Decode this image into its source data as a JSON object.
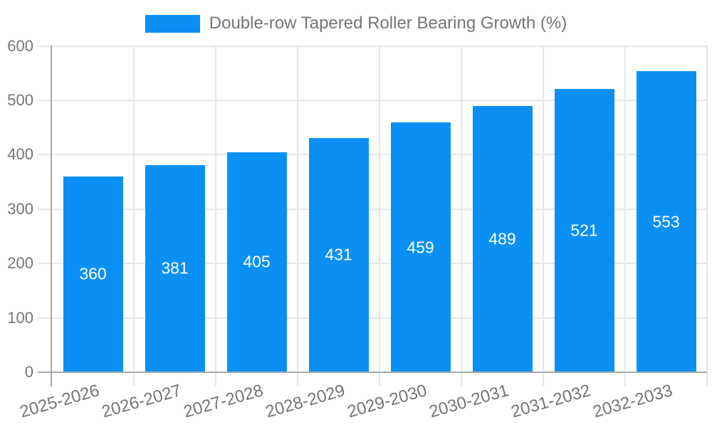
{
  "chart_data": {
    "type": "bar",
    "title": "",
    "legend": "Double-row Tapered Roller Bearing Growth (%)",
    "legend_position": "top-center",
    "categories": [
      "2025-2026",
      "2026-2027",
      "2027-2028",
      "2028-2029",
      "2029-2030",
      "2030-2031",
      "2031-2032",
      "2032-2033"
    ],
    "values": [
      360,
      381,
      405,
      431,
      459,
      489,
      521,
      553
    ],
    "xlabel": "",
    "ylabel": "",
    "ylim": [
      0,
      600
    ],
    "yticks": [
      0,
      100,
      200,
      300,
      400,
      500,
      600
    ],
    "grid": true,
    "bar_label_position": "inside-center",
    "x_tick_rotation_deg": -16,
    "colors": {
      "bar": "#0a90f5",
      "grid": "#e7e7e7",
      "axis": "#a8a8a8",
      "tick_text": "#757575",
      "legend_text": "#757575",
      "value_text": "#ffffff",
      "background": "#ffffff"
    }
  }
}
